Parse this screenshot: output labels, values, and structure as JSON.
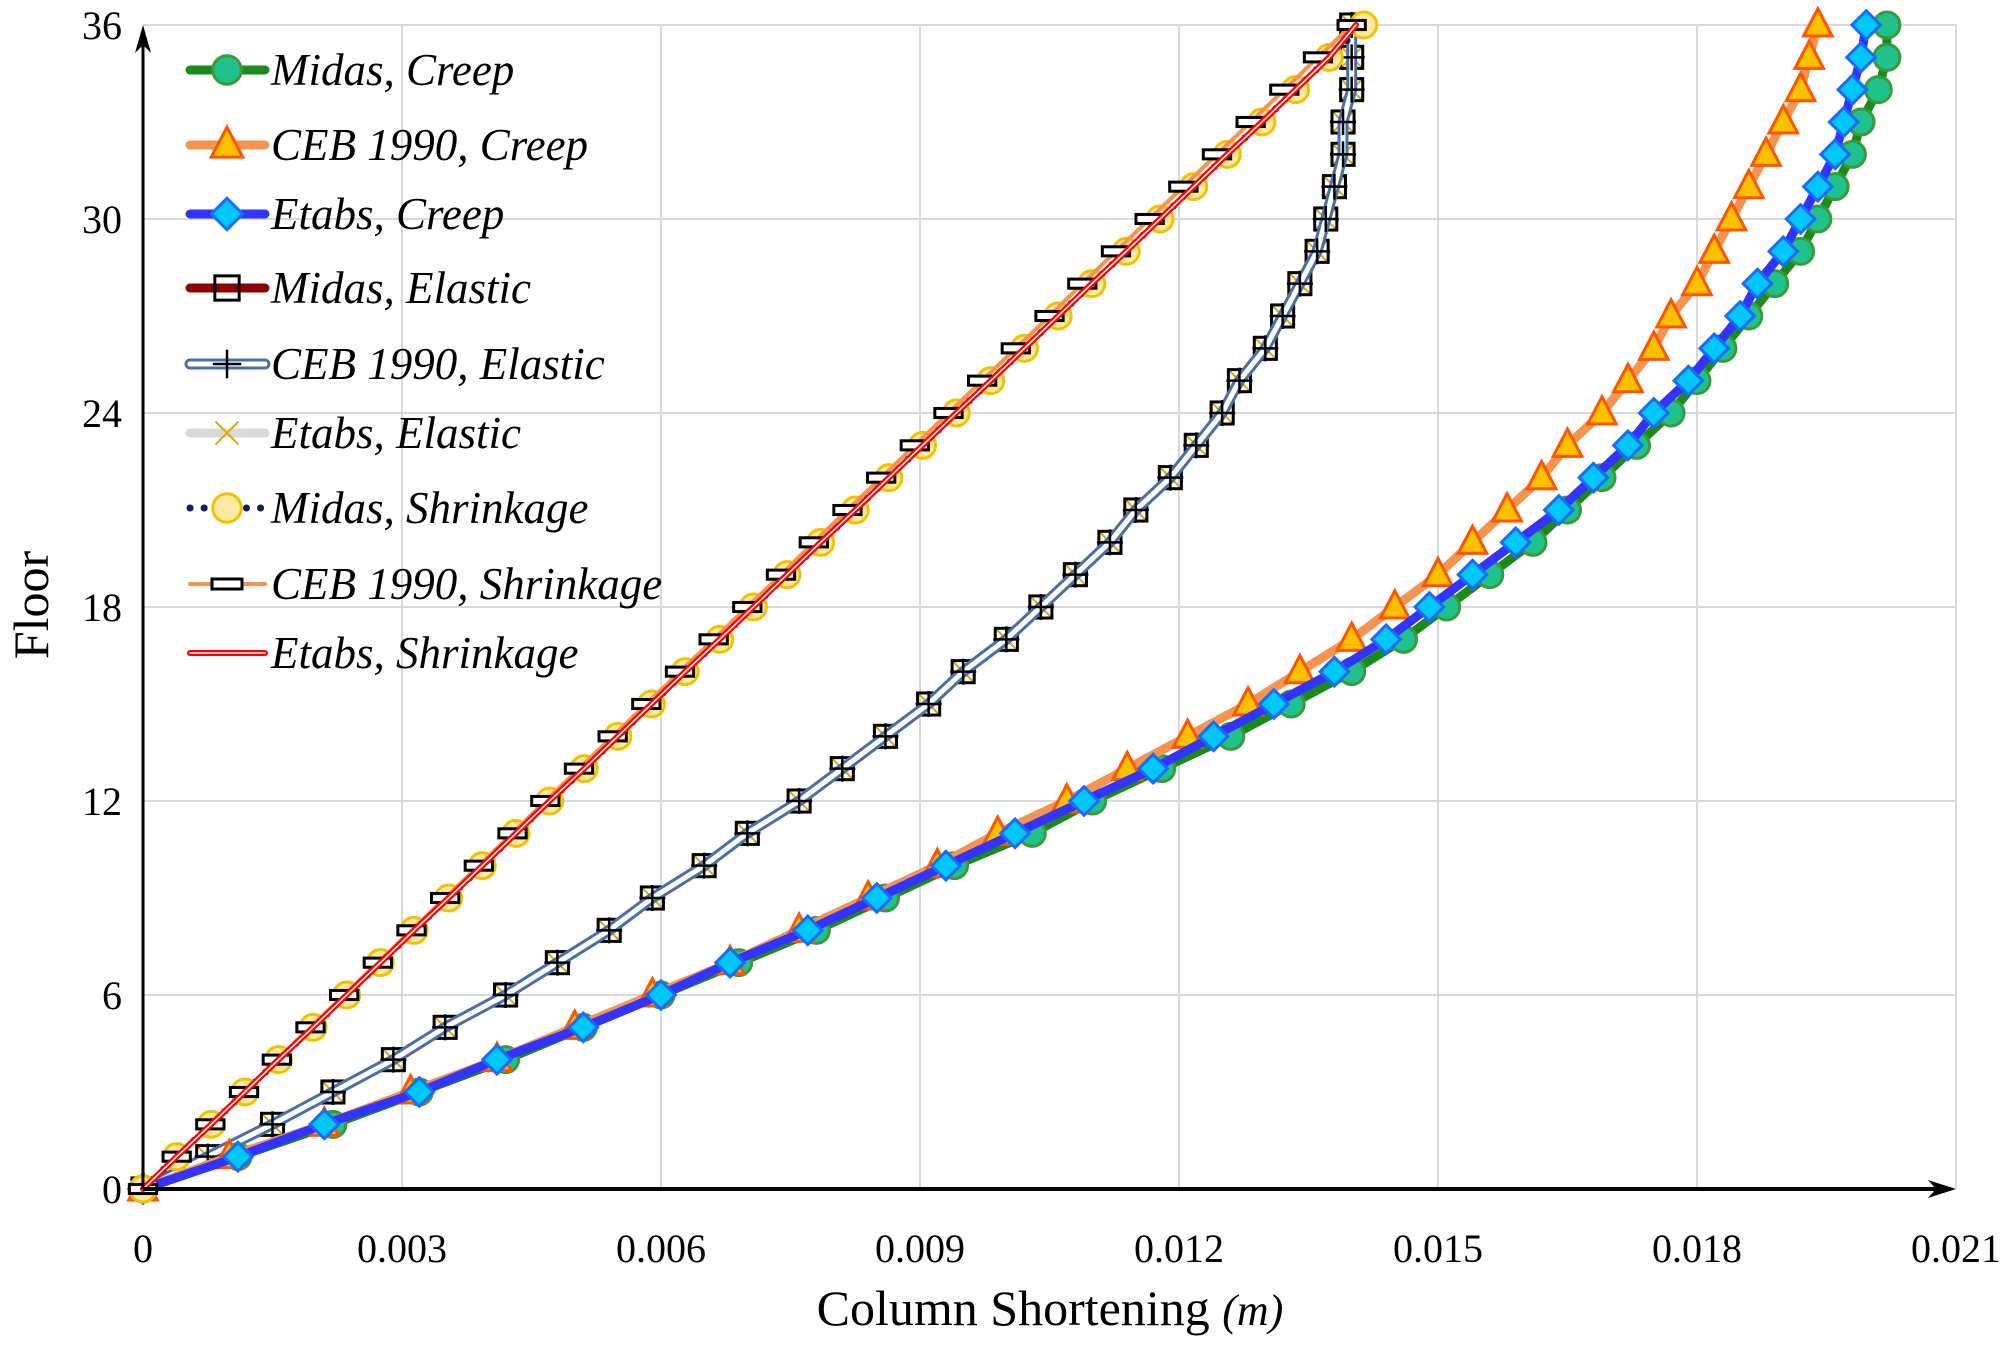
{
  "chart_data": {
    "type": "line",
    "title": "",
    "xlabel": "Column Shortening",
    "xlabel_unit": "(m)",
    "ylabel": "Floor",
    "xlim": [
      0,
      0.021
    ],
    "ylim": [
      0,
      36
    ],
    "x_ticks": [
      0,
      0.003,
      0.006,
      0.009,
      0.012,
      0.015,
      0.018,
      0.021
    ],
    "x_tick_labels": [
      "0",
      "0.003",
      "0.006",
      "0.009",
      "0.012",
      "0.015",
      "0.018",
      "0.021"
    ],
    "y_ticks": [
      0,
      6,
      12,
      18,
      24,
      30,
      36
    ],
    "y_tick_labels": [
      "0",
      "6",
      "12",
      "18",
      "24",
      "30",
      "36"
    ],
    "grid": true,
    "legend_position": "top-left",
    "floors": [
      0,
      1,
      2,
      3,
      4,
      5,
      6,
      7,
      8,
      9,
      10,
      11,
      12,
      13,
      14,
      15,
      16,
      17,
      18,
      19,
      20,
      21,
      22,
      23,
      24,
      25,
      26,
      27,
      28,
      29,
      30,
      31,
      32,
      33,
      34,
      35,
      36
    ],
    "series": [
      {
        "name": "Midas, Creep",
        "line_color": "#1a8a1a",
        "marker": "circle",
        "marker_fill": "#1fc28a",
        "marker_edge": "#3a9a3a",
        "line_style": "solid",
        "line_width": "thick",
        "values": [
          0,
          0.0011,
          0.0022,
          0.0032,
          0.0042,
          0.0051,
          0.006,
          0.0069,
          0.0078,
          0.0086,
          0.0094,
          0.0103,
          0.011,
          0.0118,
          0.0126,
          0.0133,
          0.014,
          0.0146,
          0.0151,
          0.0156,
          0.0161,
          0.0165,
          0.0169,
          0.0173,
          0.0177,
          0.018,
          0.0183,
          0.0186,
          0.0189,
          0.0192,
          0.0194,
          0.0196,
          0.0198,
          0.0199,
          0.0201,
          0.0202,
          0.0202
        ]
      },
      {
        "name": "CEB 1990, Creep",
        "line_color": "#f5944e",
        "marker": "triangle",
        "marker_fill": "#ffc000",
        "marker_edge": "#ff5500",
        "line_style": "solid",
        "line_width": "thick",
        "values": [
          0,
          0.001,
          0.0021,
          0.0031,
          0.0041,
          0.005,
          0.0059,
          0.0068,
          0.0076,
          0.0084,
          0.0092,
          0.0099,
          0.0107,
          0.0114,
          0.0121,
          0.0128,
          0.0134,
          0.014,
          0.0145,
          0.015,
          0.0154,
          0.0158,
          0.0162,
          0.0165,
          0.0169,
          0.0172,
          0.0175,
          0.0177,
          0.018,
          0.0182,
          0.0184,
          0.0186,
          0.0188,
          0.019,
          0.0192,
          0.0193,
          0.0194
        ]
      },
      {
        "name": "Etabs, Creep",
        "line_color": "#3333ff",
        "marker": "diamond",
        "marker_fill": "#00c8ff",
        "marker_edge": "#1a6aff",
        "line_style": "solid",
        "line_width": "thick",
        "values": [
          0,
          0.0011,
          0.0021,
          0.0032,
          0.0041,
          0.0051,
          0.006,
          0.0068,
          0.0077,
          0.0085,
          0.0093,
          0.0101,
          0.0109,
          0.0117,
          0.0124,
          0.0131,
          0.0138,
          0.0144,
          0.0149,
          0.0154,
          0.0159,
          0.0164,
          0.0168,
          0.0172,
          0.0175,
          0.0179,
          0.0182,
          0.0185,
          0.0187,
          0.019,
          0.0192,
          0.0194,
          0.0196,
          0.0197,
          0.0198,
          0.0199,
          0.01996
        ]
      },
      {
        "name": "Midas, Elastic",
        "line_color": "#8b0000",
        "marker": "square",
        "marker_fill": "none",
        "marker_edge": "#000000",
        "line_style": "solid",
        "line_width": "thick",
        "values": [
          0,
          0.00075,
          0.0015,
          0.0022,
          0.0029,
          0.0035,
          0.0042,
          0.0048,
          0.0054,
          0.0059,
          0.0065,
          0.007,
          0.0076,
          0.0081,
          0.0086,
          0.0091,
          0.0095,
          0.01,
          0.0104,
          0.0108,
          0.0112,
          0.0115,
          0.0119,
          0.0122,
          0.0125,
          0.0127,
          0.013,
          0.0132,
          0.0134,
          0.0136,
          0.0137,
          0.0138,
          0.0139,
          0.0139,
          0.014,
          0.014,
          0.014
        ]
      },
      {
        "name": "CEB 1990, Elastic",
        "line_color": "#4a6fa5",
        "marker": "plus",
        "marker_fill": "none",
        "marker_edge": "#000000",
        "line_style": "double",
        "line_width": "thick",
        "values": [
          0,
          0.00075,
          0.0015,
          0.0022,
          0.0029,
          0.0035,
          0.0042,
          0.0048,
          0.0054,
          0.0059,
          0.0065,
          0.007,
          0.0076,
          0.0081,
          0.0086,
          0.0091,
          0.0095,
          0.01,
          0.0104,
          0.0108,
          0.0112,
          0.0115,
          0.0119,
          0.0122,
          0.0125,
          0.0127,
          0.013,
          0.0132,
          0.0134,
          0.0136,
          0.0137,
          0.0138,
          0.0139,
          0.0139,
          0.014,
          0.014,
          0.014
        ]
      },
      {
        "name": "Etabs, Elastic",
        "line_color": "#d9d9d9",
        "marker": "x",
        "marker_fill": "none",
        "marker_edge": "#e0a800",
        "line_style": "solid",
        "line_width": "thick",
        "values": [
          0,
          0.00075,
          0.0015,
          0.0022,
          0.0029,
          0.0035,
          0.0042,
          0.0048,
          0.0054,
          0.0059,
          0.0065,
          0.007,
          0.0076,
          0.0081,
          0.0086,
          0.0091,
          0.0095,
          0.01,
          0.0104,
          0.0108,
          0.0112,
          0.0115,
          0.0119,
          0.0122,
          0.0125,
          0.0127,
          0.013,
          0.0132,
          0.0134,
          0.0136,
          0.0137,
          0.0138,
          0.0139,
          0.0139,
          0.014,
          0.014,
          0.014
        ]
      },
      {
        "name": "Midas, Shrinkage",
        "line_color": "#0d1f5c",
        "marker": "circle",
        "marker_fill": "#ffe9a0",
        "marker_edge": "#f2c200",
        "line_style": "dotted",
        "line_width": "medium",
        "values": [
          0,
          0.00039,
          0.00079,
          0.00118,
          0.00157,
          0.00197,
          0.00236,
          0.00275,
          0.00314,
          0.00354,
          0.00393,
          0.00432,
          0.00471,
          0.00511,
          0.0055,
          0.00589,
          0.00628,
          0.00668,
          0.00707,
          0.00746,
          0.00785,
          0.00825,
          0.00864,
          0.00903,
          0.00942,
          0.00982,
          0.01021,
          0.0106,
          0.01099,
          0.01139,
          0.01178,
          0.01217,
          0.01256,
          0.01296,
          0.01335,
          0.01374,
          0.01414
        ]
      },
      {
        "name": "CEB 1990, Shrinkage",
        "line_color": "#f5944e",
        "marker": "rect",
        "marker_fill": "#ffffff",
        "marker_edge": "#000000",
        "line_style": "solid",
        "line_width": "thin",
        "values": [
          0,
          0.00039,
          0.00078,
          0.00117,
          0.00155,
          0.00194,
          0.00233,
          0.00272,
          0.00311,
          0.0035,
          0.00389,
          0.00428,
          0.00466,
          0.00505,
          0.00544,
          0.00583,
          0.00622,
          0.00661,
          0.007,
          0.00739,
          0.00777,
          0.00816,
          0.00855,
          0.00894,
          0.00933,
          0.00972,
          0.01011,
          0.0105,
          0.01088,
          0.01127,
          0.01166,
          0.01205,
          0.01244,
          0.01283,
          0.01322,
          0.01361,
          0.014
        ]
      },
      {
        "name": "Etabs, Shrinkage",
        "line_color": "#ff0000",
        "marker": "none",
        "marker_fill": "none",
        "marker_edge": "none",
        "line_style": "double",
        "line_width": "thin",
        "values": [
          0,
          0.00039,
          0.00079,
          0.00118,
          0.00157,
          0.00197,
          0.00236,
          0.00275,
          0.00314,
          0.00354,
          0.00393,
          0.00432,
          0.00471,
          0.00511,
          0.0055,
          0.00589,
          0.00628,
          0.00668,
          0.00707,
          0.00746,
          0.00785,
          0.00825,
          0.00864,
          0.00903,
          0.00942,
          0.00982,
          0.01021,
          0.0106,
          0.01099,
          0.01139,
          0.01178,
          0.01217,
          0.01256,
          0.01296,
          0.01335,
          0.01374,
          0.01405
        ]
      }
    ]
  }
}
